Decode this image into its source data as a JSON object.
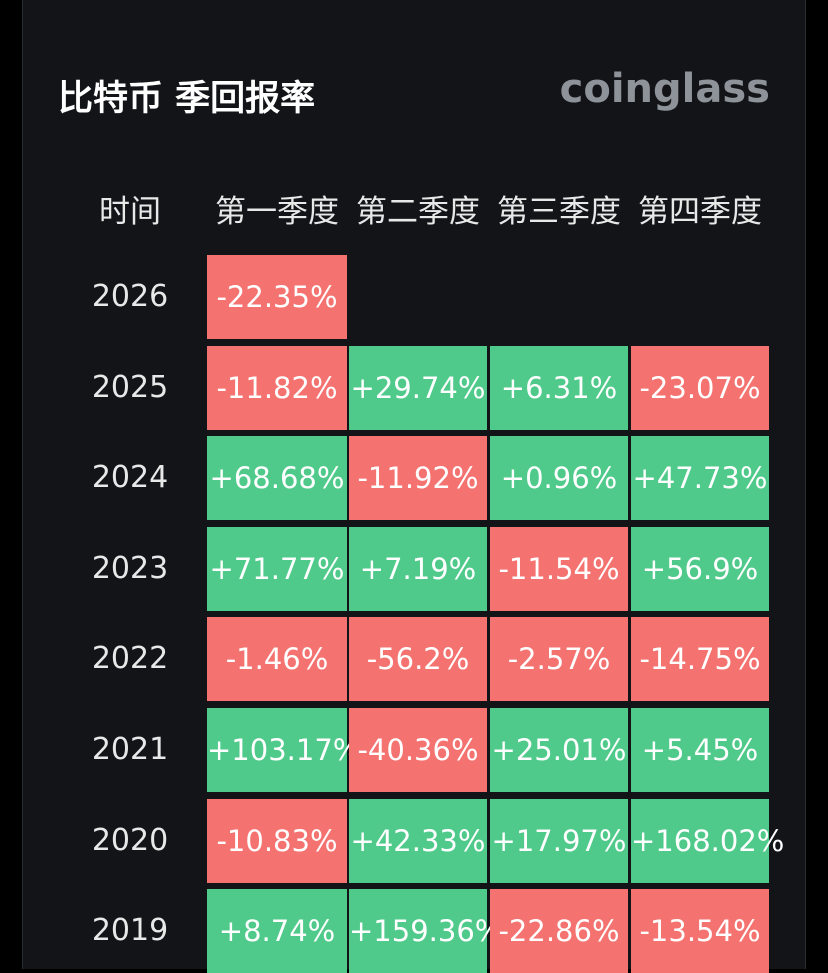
{
  "header": {
    "title": "比特币 季回报率",
    "brand": "coinglass"
  },
  "table": {
    "columns": [
      "时间",
      "第一季度",
      "第二季度",
      "第三季度",
      "第四季度"
    ],
    "rows": [
      {
        "year": "2026",
        "cells": [
          "-22.35%"
        ]
      },
      {
        "year": "2025",
        "cells": [
          "-11.82%",
          "+29.74%",
          "+6.31%",
          "-23.07%"
        ]
      },
      {
        "year": "2024",
        "cells": [
          "+68.68%",
          "-11.92%",
          "+0.96%",
          "+47.73%"
        ]
      },
      {
        "year": "2023",
        "cells": [
          "+71.77%",
          "+7.19%",
          "-11.54%",
          "+56.9%"
        ]
      },
      {
        "year": "2022",
        "cells": [
          "-1.46%",
          "-56.2%",
          "-2.57%",
          "-14.75%"
        ]
      },
      {
        "year": "2021",
        "cells": [
          "+103.17%",
          "-40.36%",
          "+25.01%",
          "+5.45%"
        ]
      },
      {
        "year": "2020",
        "cells": [
          "-10.83%",
          "+42.33%",
          "+17.97%",
          "+168.02%"
        ]
      },
      {
        "year": "2019",
        "cells": [
          "+8.74%",
          "+159.36%",
          "-22.86%",
          "-13.54%"
        ]
      }
    ]
  }
}
